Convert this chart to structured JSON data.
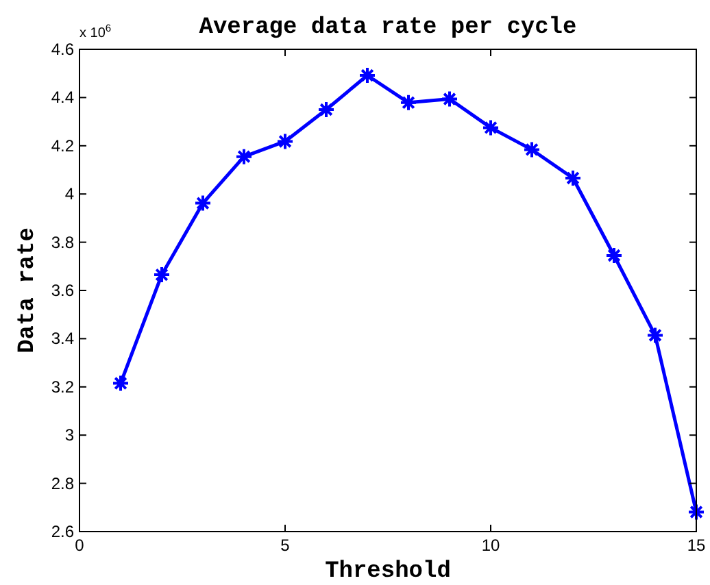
{
  "chart_data": {
    "type": "line",
    "title": "Average data rate per cycle",
    "xlabel": "Threshold",
    "ylabel": "Data rate",
    "annotations": [
      "x 10$^{6}$"
    ],
    "x": [
      1,
      2,
      3,
      4,
      5,
      6,
      7,
      8,
      9,
      10,
      11,
      12,
      13,
      14,
      15
    ],
    "series": [
      {
        "color": "#0000ff",
        "values": [
          3.215,
          3.665,
          3.962,
          4.155,
          4.218,
          4.35,
          4.492,
          4.379,
          4.394,
          4.275,
          4.184,
          4.066,
          3.745,
          3.414,
          2.681
        ]
      }
    ],
    "xlim": [
      0,
      15
    ],
    "xticks": [
      0,
      5,
      10,
      15
    ],
    "ylim": [
      2.6,
      4.6
    ],
    "yticks": [
      2.6,
      2.8,
      3,
      3.2,
      3.4,
      3.6,
      3.8,
      4,
      4.2,
      4.4,
      4.6
    ],
    "grid": false,
    "marker": "cross",
    "line_style": "solid"
  }
}
